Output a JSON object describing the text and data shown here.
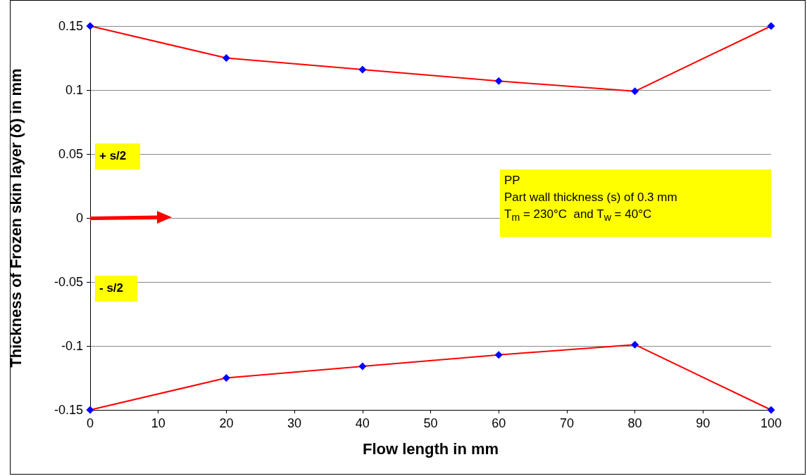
{
  "chart_data": {
    "type": "line",
    "xlabel": "Flow length in mm",
    "ylabel": "Thickness of Frozen skin layer (δ) in mm",
    "x": [
      0,
      20,
      40,
      60,
      80,
      100
    ],
    "series": [
      {
        "color": "#ff0000",
        "values": [
          0.15,
          0.125,
          0.116,
          0.107,
          0.099,
          0.15
        ]
      },
      {
        "color": "#ff0000",
        "values": [
          -0.15,
          -0.125,
          -0.116,
          -0.107,
          -0.099,
          -0.15
        ]
      }
    ],
    "xlim": [
      0,
      100
    ],
    "xticks": [
      0,
      10,
      20,
      30,
      40,
      50,
      60,
      70,
      80,
      90,
      100
    ],
    "ylim": [
      -0.15,
      0.15
    ],
    "yticks": [
      -0.15,
      -0.1,
      -0.05,
      0,
      0.05,
      0.1,
      0.15
    ],
    "grid": "y",
    "marker": "diamond",
    "line_style": "solid",
    "annotations": [
      "+ s/2",
      "- s/2",
      "PP\nPart wall thickness (s) of 0.3 mm\nT$_{m}$ = 230°C  and T$_{w}$ = 40°C"
    ]
  }
}
